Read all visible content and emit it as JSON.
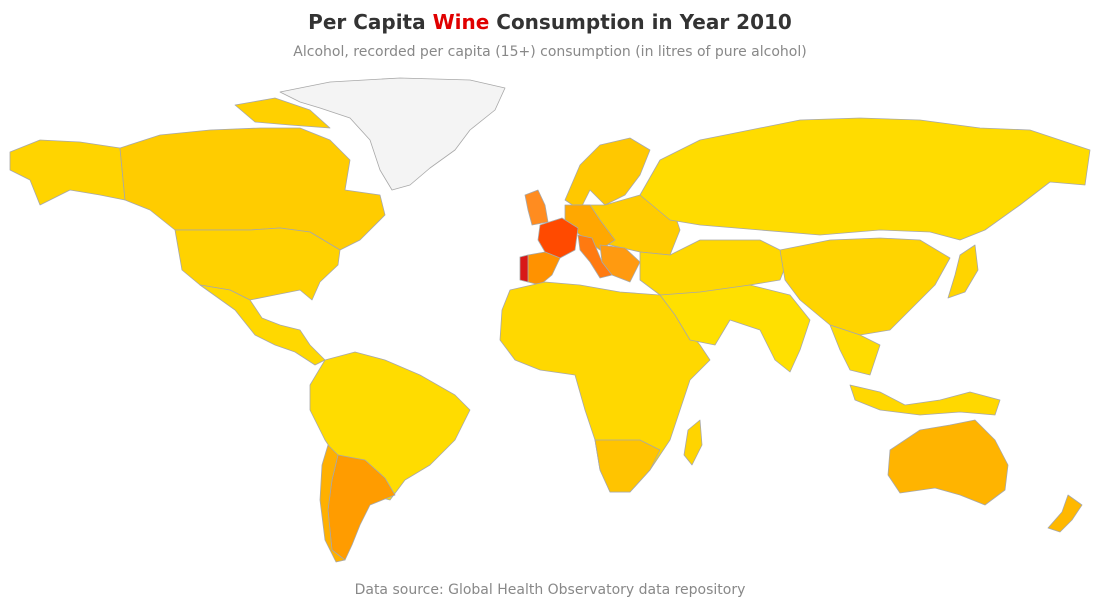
{
  "header": {
    "title_before": "Per Capita ",
    "title_highlight": "Wine",
    "title_after": " Consumption in Year 2010",
    "subtitle": "Alcohol, recorded per capita (15+) consumption (in litres of pure alcohol)"
  },
  "footer": {
    "source": "Data source: Global Health Observatory data repository"
  }
}
